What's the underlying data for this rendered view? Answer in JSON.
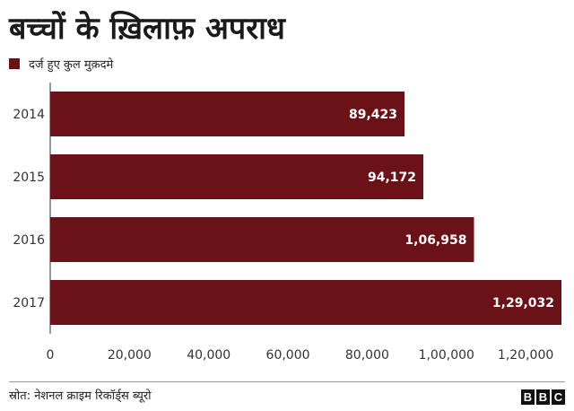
{
  "chart_data": {
    "type": "bar",
    "orientation": "horizontal",
    "title": "बच्चों के ख़िलाफ़ अपराध",
    "categories": [
      "2014",
      "2015",
      "2016",
      "2017"
    ],
    "series": [
      {
        "name": "दर्ज हुए कुल मुक़दमे",
        "values": [
          89423,
          94172,
          106958,
          129032
        ],
        "value_labels": [
          "89,423",
          "94,172",
          "1,06,958",
          "1,29,032"
        ]
      }
    ],
    "x_ticks": [
      0,
      20000,
      40000,
      60000,
      80000,
      100000,
      120000
    ],
    "x_tick_labels": [
      "0",
      "20,000",
      "40,000",
      "60,000",
      "80,000",
      "1,00,000",
      "1,20,000"
    ],
    "xlim": [
      0,
      129032
    ],
    "grid": false,
    "legend_position": "top-left",
    "bar_color": "#6b1218"
  },
  "source": "स्रोत: नेशनल क्राइम रिकॉर्ड्स ब्यूरो",
  "logo": [
    "B",
    "B",
    "C"
  ]
}
